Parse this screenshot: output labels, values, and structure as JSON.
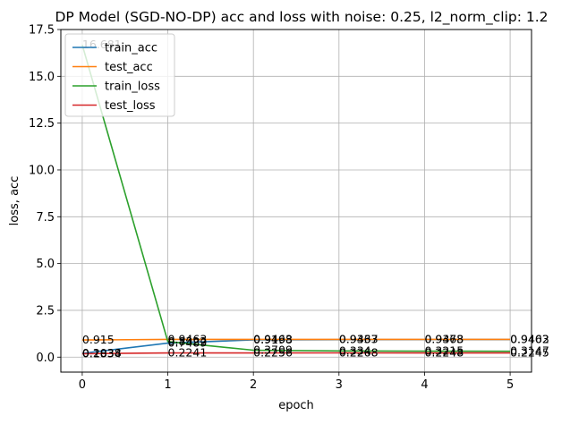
{
  "chart_data": {
    "type": "line",
    "title": "DP Model (SGD-NO-DP) acc and loss with noise: 0.25, l2_norm_clip: 1.2",
    "xlabel": "epoch",
    "ylabel": "loss, acc",
    "xlim": [
      -0.25,
      5.25
    ],
    "ylim": [
      -0.8,
      17.5
    ],
    "x_ticks": [
      "0",
      "1",
      "2",
      "3",
      "4",
      "5"
    ],
    "y_ticks": [
      "0.0",
      "2.5",
      "5.0",
      "7.5",
      "10.0",
      "12.5",
      "15.0",
      "17.5"
    ],
    "grid": true,
    "legend": "top-left",
    "x": [
      0,
      1,
      2,
      3,
      4,
      5
    ],
    "series": [
      {
        "name": "train_acc",
        "color": "#1f77b4",
        "values": [
          0.2038,
          0.7489,
          0.9198,
          0.9337,
          0.9378,
          0.9402
        ],
        "labels": [
          "0.2038",
          "0.7489",
          "0.9198",
          "0.9337",
          "0.9378",
          "0.9402"
        ]
      },
      {
        "name": "test_acc",
        "color": "#ff7f0e",
        "values": [
          0.915,
          0.9463,
          0.9463,
          0.9463,
          0.9463,
          0.9463
        ],
        "labels": [
          "0.915",
          "0.9463",
          "0.9463",
          "0.9463",
          "0.9463",
          "0.9463"
        ]
      },
      {
        "name": "train_loss",
        "color": "#2ca02c",
        "values": [
          16.681,
          0.8322,
          0.3709,
          0.334,
          0.3215,
          0.3147
        ],
        "labels": [
          "16.681",
          "0.8322",
          "0.3709",
          "0.334",
          "0.3215",
          "0.3147"
        ]
      },
      {
        "name": "test_loss",
        "color": "#d62728",
        "values": [
          0.1834,
          0.2241,
          0.2256,
          0.2268,
          0.2248,
          0.2245
        ],
        "labels": [
          "0.1834",
          "0.2241",
          "0.2256",
          "0.2268",
          "0.2248",
          "0.2245"
        ]
      }
    ]
  }
}
